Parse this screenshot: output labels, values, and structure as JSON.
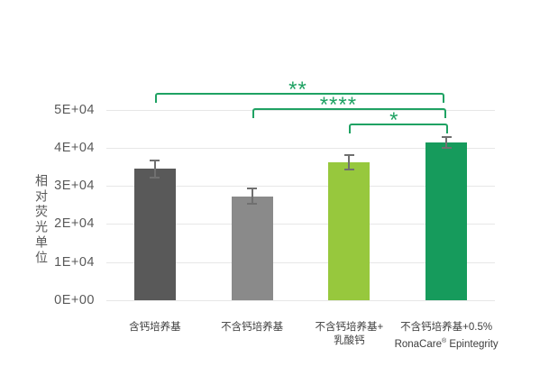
{
  "chart_data": {
    "type": "bar",
    "ylabel": "相对荧光单位",
    "categories": [
      [
        "含钙培养基"
      ],
      [
        "不含钙培养基"
      ],
      [
        "不含钙培养基+",
        "乳酸钙"
      ],
      [
        "不含钙培养基+0.5%",
        "RonaCare® Epintegrity"
      ]
    ],
    "values": [
      34400,
      27300,
      36200,
      41400
    ],
    "errors": [
      2500,
      2300,
      2200,
      1700
    ],
    "bar_colors": [
      "#595959",
      "#8A8A8A",
      "#97C83D",
      "#169B5C"
    ],
    "error_bar_color": "#707070",
    "ylim": [
      0,
      50000
    ],
    "yticks": [
      {
        "value": 0,
        "label": "0E+00"
      },
      {
        "value": 10000,
        "label": "1E+04"
      },
      {
        "value": 20000,
        "label": "2E+04"
      },
      {
        "value": 30000,
        "label": "3E+04"
      },
      {
        "value": 40000,
        "label": "4E+04"
      },
      {
        "value": 50000,
        "label": "5E+04"
      }
    ],
    "grid": true,
    "legend": "none",
    "significance": {
      "color": "#1FA263",
      "brackets": [
        {
          "from": 0,
          "to": 3,
          "label": "**"
        },
        {
          "from": 1,
          "to": 3,
          "label": "****"
        },
        {
          "from": 2,
          "to": 3,
          "label": "*"
        }
      ]
    }
  }
}
